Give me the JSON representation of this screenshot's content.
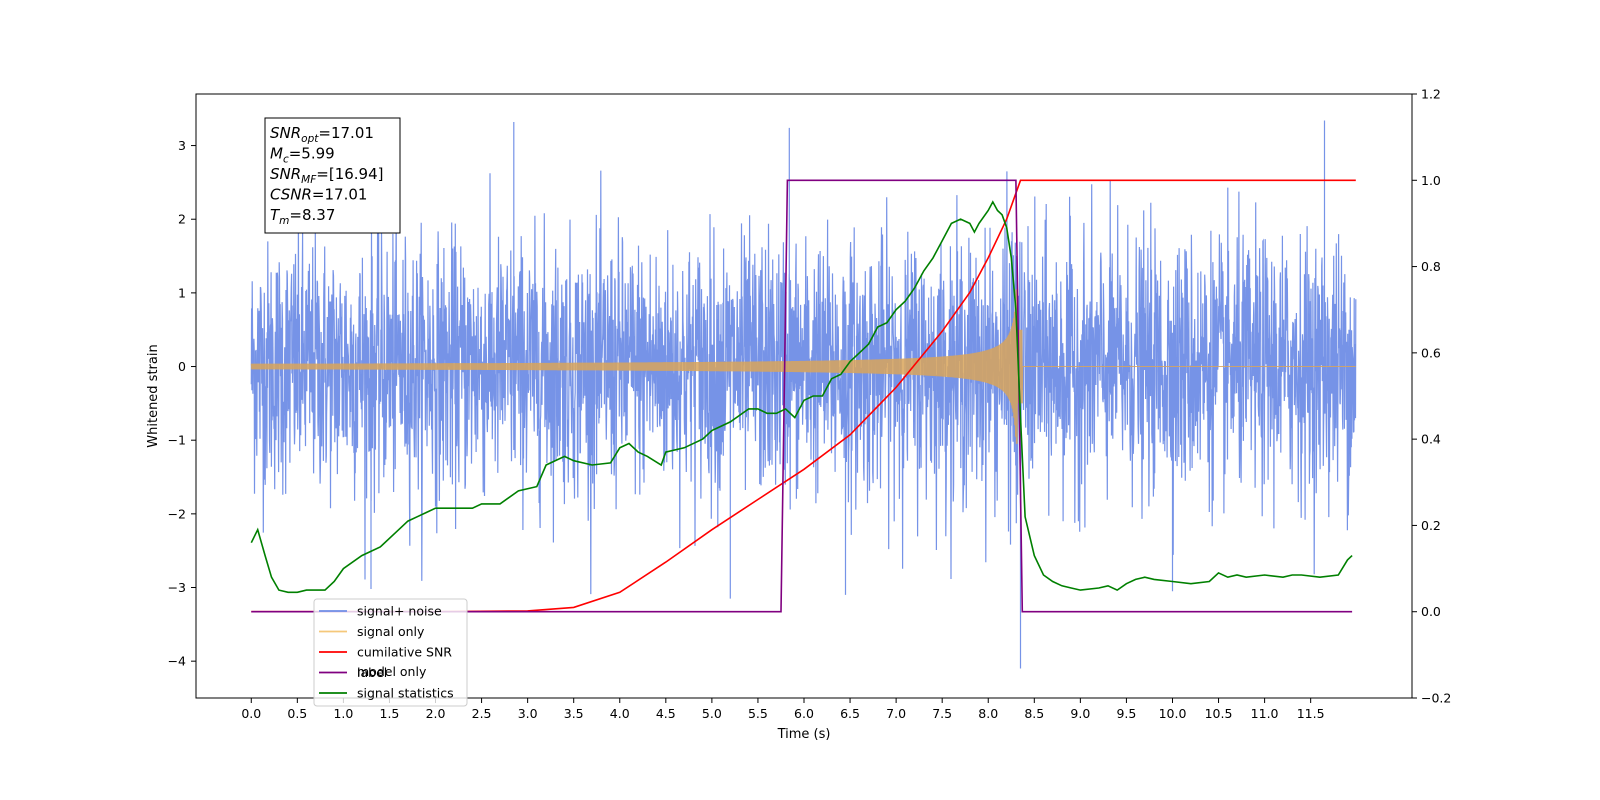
{
  "chart_data": {
    "type": "line",
    "xlabel": "Time (s)",
    "ylabel": "Whitened strain",
    "xlim": [
      -0.6,
      12.6
    ],
    "ylim": [
      -4.5,
      3.7
    ],
    "y2lim": [
      -0.2,
      1.2
    ],
    "x_ticks": [
      0.0,
      0.5,
      1.0,
      1.5,
      2.0,
      2.5,
      3.0,
      3.5,
      4.0,
      4.5,
      5.0,
      5.5,
      6.0,
      6.5,
      7.0,
      7.5,
      8.0,
      8.5,
      9.0,
      9.5,
      10.0,
      10.5,
      11.0,
      11.5
    ],
    "x_tick_labels": [
      "0.0",
      "0.5",
      "1.0",
      "1.5",
      "2.0",
      "2.5",
      "3.0",
      "3.5",
      "4.0",
      "4.5",
      "5.0",
      "5.5",
      "6.0",
      "6.5",
      "7.0",
      "7.5",
      "8.0",
      "8.5",
      "9.0",
      "9.5",
      "10.0",
      "10.5",
      "11.0",
      "11.5"
    ],
    "y_ticks": [
      -4,
      -3,
      -2,
      -1,
      0,
      1,
      2,
      3
    ],
    "y_tick_labels": [
      "−4",
      "−3",
      "−2",
      "−1",
      "0",
      "1",
      "2",
      "3"
    ],
    "y2_ticks": [
      -0.2,
      0.0,
      0.2,
      0.4,
      0.6,
      0.8,
      1.0,
      1.2
    ],
    "y2_tick_labels": [
      "−0.2",
      "0.0",
      "0.2",
      "0.4",
      "0.6",
      "0.8",
      "1.0",
      "1.2"
    ],
    "grid": false,
    "legend_position": "lower-left",
    "annotation": {
      "lines": [
        {
          "base": "SNR",
          "sub": "opt",
          "value": "=17.01"
        },
        {
          "base": "M",
          "sub": "c",
          "value": "=5.99"
        },
        {
          "base": "SNR",
          "sub": "MF",
          "value": "=[16.94]"
        },
        {
          "base": "CSNR",
          "sub": "",
          "value": "=17.01"
        },
        {
          "base": "T",
          "sub": "m",
          "value": "=8.37"
        }
      ]
    },
    "series": [
      {
        "name": "signal+ noise",
        "axis": "left",
        "color": "#6f8de6",
        "description_amplitude": "noise band roughly ±1.8 with spikes to 3.3 and −4.1",
        "x_range": [
          0.0,
          11.99
        ],
        "noise_std": 0.85,
        "spikes": [
          [
            2.85,
            3.32
          ],
          [
            5.84,
            3.24
          ],
          [
            11.65,
            3.34
          ],
          [
            8.35,
            -4.1
          ],
          [
            5.2,
            -3.15
          ],
          [
            1.3,
            -3.02
          ],
          [
            6.45,
            -3.1
          ],
          [
            10.0,
            -3.05
          ]
        ]
      },
      {
        "name": "signal only",
        "axis": "left",
        "color": "#d9a45a",
        "description_amplitude": "chirp growing from ~0 to ~1.0 at merger near 8.3 s",
        "x_range": [
          0.0,
          11.99
        ],
        "merger_time": 8.32,
        "peak_amplitude": 1.0
      },
      {
        "name": "cumilative SNR",
        "axis": "right",
        "color": "#ff0000",
        "x": [
          0.0,
          2.0,
          3.0,
          3.5,
          4.0,
          4.5,
          5.0,
          5.5,
          6.0,
          6.5,
          7.0,
          7.5,
          7.8,
          8.0,
          8.2,
          8.3,
          8.35,
          8.4,
          9.0,
          10.0,
          11.0,
          11.99
        ],
        "values": [
          0.0,
          0.0,
          0.002,
          0.01,
          0.045,
          0.115,
          0.19,
          0.26,
          0.33,
          0.41,
          0.52,
          0.65,
          0.74,
          0.82,
          0.91,
          0.97,
          1.0,
          1.0,
          1.0,
          1.0,
          1.0,
          1.0
        ]
      },
      {
        "name": "label",
        "axis": "right",
        "color": "#800080",
        "x": [
          0.0,
          5.75,
          5.82,
          8.3,
          8.37,
          11.95
        ],
        "values": [
          0.0,
          0.0,
          1.0,
          1.0,
          0.0,
          0.0
        ]
      },
      {
        "name": "signal statistics",
        "axis": "right",
        "color": "#008000",
        "x": [
          0.0,
          0.07,
          0.15,
          0.22,
          0.3,
          0.4,
          0.5,
          0.6,
          0.7,
          0.8,
          0.9,
          1.0,
          1.2,
          1.4,
          1.6,
          1.7,
          1.8,
          1.9,
          2.0,
          2.2,
          2.4,
          2.5,
          2.7,
          2.9,
          3.1,
          3.2,
          3.4,
          3.5,
          3.7,
          3.9,
          4.0,
          4.1,
          4.2,
          4.3,
          4.45,
          4.5,
          4.7,
          4.9,
          5.0,
          5.2,
          5.4,
          5.5,
          5.6,
          5.7,
          5.8,
          5.9,
          6.0,
          6.1,
          6.2,
          6.3,
          6.4,
          6.5,
          6.6,
          6.7,
          6.8,
          6.9,
          7.0,
          7.1,
          7.2,
          7.3,
          7.4,
          7.5,
          7.6,
          7.7,
          7.8,
          7.85,
          7.9,
          8.0,
          8.05,
          8.1,
          8.15,
          8.2,
          8.25,
          8.3,
          8.35,
          8.4,
          8.5,
          8.6,
          8.7,
          8.8,
          8.9,
          9.0,
          9.2,
          9.3,
          9.4,
          9.5,
          9.6,
          9.7,
          9.8,
          10.0,
          10.2,
          10.4,
          10.5,
          10.6,
          10.7,
          10.8,
          11.0,
          11.2,
          11.3,
          11.4,
          11.6,
          11.8,
          11.9,
          11.95
        ],
        "values": [
          0.16,
          0.19,
          0.13,
          0.08,
          0.05,
          0.045,
          0.045,
          0.05,
          0.05,
          0.05,
          0.07,
          0.1,
          0.13,
          0.15,
          0.19,
          0.21,
          0.22,
          0.23,
          0.24,
          0.24,
          0.24,
          0.25,
          0.25,
          0.28,
          0.29,
          0.34,
          0.36,
          0.35,
          0.34,
          0.345,
          0.38,
          0.39,
          0.37,
          0.36,
          0.34,
          0.37,
          0.38,
          0.4,
          0.42,
          0.44,
          0.47,
          0.47,
          0.46,
          0.46,
          0.47,
          0.45,
          0.49,
          0.5,
          0.5,
          0.54,
          0.55,
          0.58,
          0.6,
          0.62,
          0.66,
          0.67,
          0.7,
          0.72,
          0.75,
          0.79,
          0.82,
          0.86,
          0.9,
          0.91,
          0.9,
          0.88,
          0.9,
          0.93,
          0.95,
          0.93,
          0.92,
          0.89,
          0.82,
          0.7,
          0.45,
          0.22,
          0.13,
          0.085,
          0.07,
          0.06,
          0.055,
          0.05,
          0.055,
          0.06,
          0.05,
          0.065,
          0.075,
          0.08,
          0.075,
          0.07,
          0.065,
          0.07,
          0.09,
          0.08,
          0.085,
          0.08,
          0.085,
          0.08,
          0.085,
          0.085,
          0.08,
          0.085,
          0.12,
          0.13
        ]
      },
      {
        "name": "model only",
        "axis": "right",
        "color": "#ffffff",
        "hidden_behind_legend": true,
        "x": [
          0.0,
          11.99
        ],
        "values": [
          0.0,
          0.0
        ]
      }
    ],
    "legend": [
      {
        "label": "signal+ noise",
        "color": "#6f8de6"
      },
      {
        "label": "signal only",
        "color": "#f5c87a"
      },
      {
        "label": "cumilative SNR",
        "color": "#ff0000"
      },
      {
        "label": "label",
        "color": "#800080"
      },
      {
        "label": "signal statistics",
        "color": "#008000"
      }
    ],
    "legend_ghost_text": "model only"
  }
}
